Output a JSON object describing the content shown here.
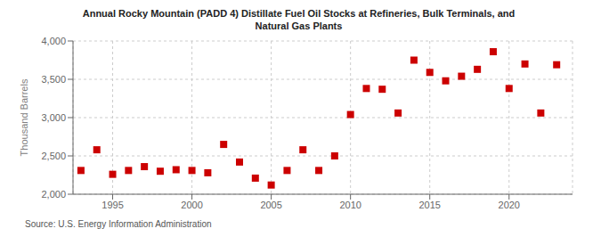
{
  "chart_data": {
    "type": "scatter",
    "title": "Annual Rocky Mountain (PADD 4) Distillate Fuel Oil Stocks at Refineries, Bulk Terminals, and\nNatural Gas Plants",
    "ylabel": "Thousand Barrels",
    "annotation": "Source: U.S. Energy Information Administration",
    "x": [
      1993,
      1994,
      1995,
      1996,
      1997,
      1998,
      1999,
      2000,
      2001,
      2002,
      2003,
      2004,
      2005,
      2006,
      2007,
      2008,
      2009,
      2010,
      2011,
      2012,
      2013,
      2014,
      2015,
      2016,
      2017,
      2018,
      2019,
      2020,
      2021,
      2022,
      2023
    ],
    "values": [
      2310,
      2580,
      2260,
      2310,
      2360,
      2300,
      2320,
      2310,
      2280,
      2650,
      2420,
      2210,
      2120,
      2310,
      2580,
      2310,
      2500,
      3040,
      3380,
      3370,
      3060,
      3750,
      3590,
      3480,
      3540,
      3630,
      3860,
      3380,
      3700,
      3060,
      3690
    ],
    "color": "#cc0000",
    "marker": "square",
    "xlim": [
      1992.5,
      2024
    ],
    "xticks": [
      1995,
      2000,
      2005,
      2010,
      2015,
      2020
    ],
    "ylim": [
      2000,
      4000
    ],
    "yticks": [
      {
        "value": 2000,
        "label": "2,000"
      },
      {
        "value": 2500,
        "label": "2,500"
      },
      {
        "value": 3000,
        "label": "3,000"
      },
      {
        "value": 3500,
        "label": "3,500"
      },
      {
        "value": 4000,
        "label": "4,000"
      }
    ],
    "grid": true
  }
}
